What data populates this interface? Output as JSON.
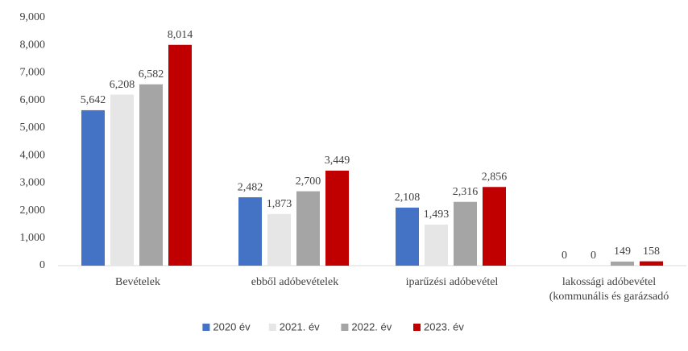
{
  "chart_data": {
    "type": "bar",
    "categories": [
      "Bevételek",
      "ebből adóbevételek",
      "iparűzési adóbevétel",
      "lakossági adóbevétel\n(kommunális és garázsadó"
    ],
    "series": [
      {
        "name": "2020 év",
        "color": "#4472c4",
        "values": [
          5642,
          2482,
          2108,
          0
        ],
        "value_labels": [
          "5,642",
          "2,482",
          "2,108",
          "0"
        ]
      },
      {
        "name": "2021. év",
        "color": "#e7e6e6",
        "values": [
          6208,
          1873,
          1493,
          0
        ],
        "value_labels": [
          "6,208",
          "1,873",
          "1,493",
          "0"
        ]
      },
      {
        "name": "2022. év",
        "color": "#a5a5a5",
        "values": [
          6582,
          2700,
          2316,
          149
        ],
        "value_labels": [
          "6,582",
          "2,700",
          "2,316",
          "149"
        ]
      },
      {
        "name": "2023. év",
        "color": "#c00000",
        "values": [
          8014,
          3449,
          2856,
          158
        ],
        "value_labels": [
          "8,014",
          "3,449",
          "2,856",
          "158"
        ]
      }
    ],
    "ylim": [
      0,
      9000
    ],
    "yticks": [
      0,
      {
        "value": 1000,
        "label": "1,000"
      },
      {
        "value": 2000,
        "label": "2,000"
      },
      {
        "value": 3000,
        "label": "3,000"
      },
      {
        "value": 4000,
        "label": "4,000"
      },
      {
        "value": 5000,
        "label": "5,000"
      },
      {
        "value": 6000,
        "label": "6,000"
      },
      {
        "value": 7000,
        "label": "7,000"
      },
      {
        "value": 8000,
        "label": "8,000"
      },
      {
        "value": 9000,
        "label": "9,000"
      }
    ],
    "grid": false,
    "legend": "bottom"
  }
}
